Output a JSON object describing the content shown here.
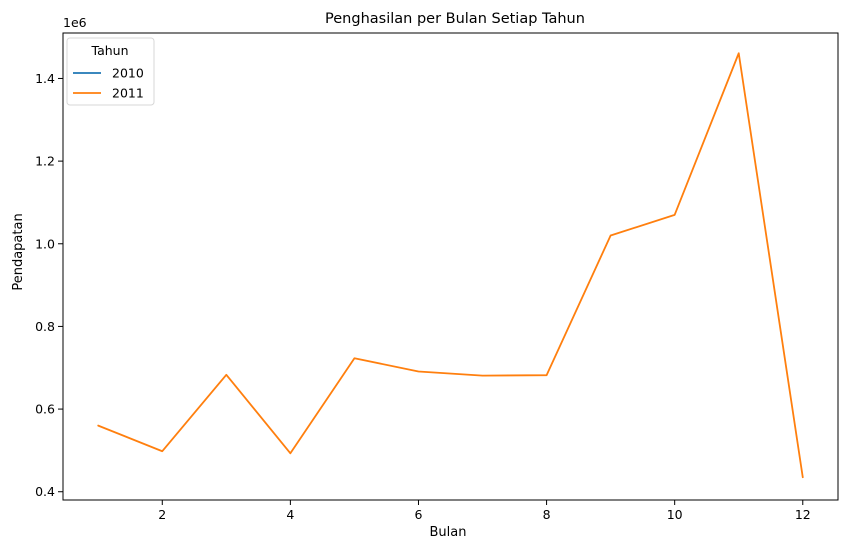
{
  "chart_data": {
    "type": "line",
    "title": "Penghasilan per Bulan Setiap Tahun",
    "xlabel": "Bulan",
    "ylabel": "Pendapatan",
    "y_offset_label": "1e6",
    "xlim": [
      0.45,
      12.55
    ],
    "ylim": [
      0.38,
      1.51
    ],
    "x_ticks": [
      2,
      4,
      6,
      8,
      10,
      12
    ],
    "y_ticks": [
      0.4,
      0.6,
      0.8,
      1.0,
      1.2,
      1.4
    ],
    "x_tick_labels": [
      "2",
      "4",
      "6",
      "8",
      "10",
      "12"
    ],
    "y_tick_labels": [
      "0.4",
      "0.6",
      "0.8",
      "1.0",
      "1.2",
      "1.4"
    ],
    "grid": false,
    "legend": {
      "title": "Tahun",
      "placement": "top-left"
    },
    "series": [
      {
        "name": "2010",
        "color": "#1f77b4",
        "x": [
          12
        ],
        "values": [
          0.435
        ]
      },
      {
        "name": "2011",
        "color": "#ff7f0e",
        "x": [
          1,
          2,
          3,
          4,
          5,
          6,
          7,
          8,
          9,
          10,
          11,
          12
        ],
        "values": [
          0.56,
          0.498,
          0.683,
          0.493,
          0.723,
          0.691,
          0.681,
          0.682,
          1.02,
          1.07,
          1.461,
          0.435
        ]
      }
    ]
  }
}
